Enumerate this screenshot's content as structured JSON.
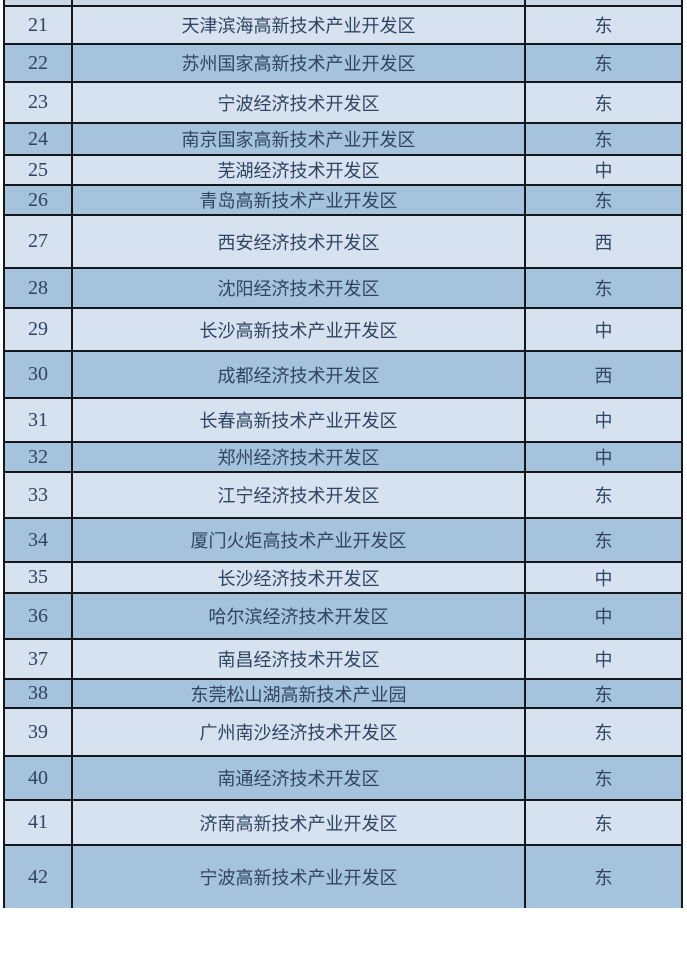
{
  "colors": {
    "row_light": "#d7e2f0",
    "row_dark": "#a6c3de",
    "row_partial": "#c9d6e8",
    "border": "#15171a",
    "text": "#2f4460"
  },
  "table": {
    "rows": [
      {
        "rank": "21",
        "name": "天津滨海高新技术产业开发区",
        "region": "东"
      },
      {
        "rank": "22",
        "name": "苏州国家高新技术产业开发区",
        "region": "东"
      },
      {
        "rank": "23",
        "name": "宁波经济技术开发区",
        "region": "东"
      },
      {
        "rank": "24",
        "name": "南京国家高新技术产业开发区",
        "region": "东"
      },
      {
        "rank": "25",
        "name": "芜湖经济技术开发区",
        "region": "中"
      },
      {
        "rank": "26",
        "name": "青岛高新技术产业开发区",
        "region": "东"
      },
      {
        "rank": "27",
        "name": "西安经济技术开发区",
        "region": "西"
      },
      {
        "rank": "28",
        "name": "沈阳经济技术开发区",
        "region": "东"
      },
      {
        "rank": "29",
        "name": "长沙高新技术产业开发区",
        "region": "中"
      },
      {
        "rank": "30",
        "name": "成都经济技术开发区",
        "region": "西"
      },
      {
        "rank": "31",
        "name": "长春高新技术产业开发区",
        "region": "中"
      },
      {
        "rank": "32",
        "name": "郑州经济技术开发区",
        "region": "中"
      },
      {
        "rank": "33",
        "name": "江宁经济技术开发区",
        "region": "东"
      },
      {
        "rank": "34",
        "name": "厦门火炬高技术产业开发区",
        "region": "东"
      },
      {
        "rank": "35",
        "name": "长沙经济技术开发区",
        "region": "中"
      },
      {
        "rank": "36",
        "name": "哈尔滨经济技术开发区",
        "region": "中"
      },
      {
        "rank": "37",
        "name": "南昌经济技术开发区",
        "region": "中"
      },
      {
        "rank": "38",
        "name": "东莞松山湖高新技术产业园",
        "region": "东"
      },
      {
        "rank": "39",
        "name": "广州南沙经济技术开发区",
        "region": "东"
      },
      {
        "rank": "40",
        "name": "南通经济技术开发区",
        "region": "东"
      },
      {
        "rank": "41",
        "name": "济南高新技术产业开发区",
        "region": "东"
      },
      {
        "rank": "42",
        "name": "宁波高新技术产业开发区",
        "region": "东"
      }
    ]
  }
}
